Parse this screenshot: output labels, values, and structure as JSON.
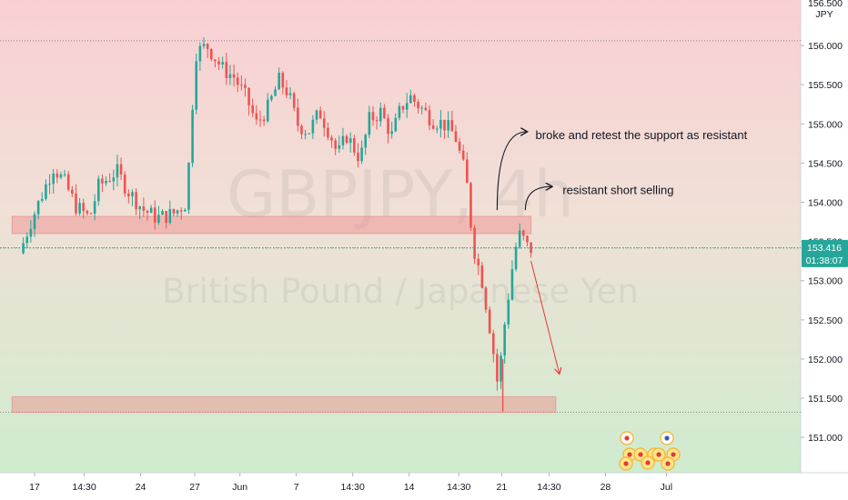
{
  "chart_data": {
    "type": "candlestick",
    "title": "GBPJPY, 4h",
    "subtitle": "British Pound / Japanese Yen",
    "currency": "JPY",
    "y_axis": {
      "ylim": [
        150.55,
        156.58
      ],
      "ticks": [
        "156.000",
        "155.500",
        "155.000",
        "154.500",
        "154.000",
        "153.500",
        "153.000",
        "152.500",
        "152.000",
        "151.500",
        "151.000"
      ],
      "top_partial": "156.500"
    },
    "x_axis": {
      "ticks": [
        {
          "label": "17",
          "day": 0
        },
        {
          "label": "14:30",
          "day": 2.2
        },
        {
          "label": "24",
          "day": 4.7
        },
        {
          "label": "27",
          "day": 7.1
        },
        {
          "label": "Jun",
          "day": 9.1
        },
        {
          "label": "7",
          "day": 11.6
        },
        {
          "label": "14:30",
          "day": 14.1
        },
        {
          "label": "14",
          "day": 16.6
        },
        {
          "label": "14:30",
          "day": 18.8
        },
        {
          "label": "21",
          "day": 20.7
        },
        {
          "label": "14:30",
          "day": 22.8
        },
        {
          "label": "28",
          "day": 25.3
        },
        {
          "label": "Jul",
          "day": 28.0
        }
      ]
    },
    "last_price": {
      "value": "153.416",
      "countdown": "01:38:07",
      "price": 153.416
    },
    "reference_lines": [
      156.06,
      153.42,
      151.32
    ],
    "zones": [
      {
        "name": "resistance-zone",
        "low": 153.6,
        "high": 153.82,
        "start_day": -1.0,
        "end_day": 22.0
      },
      {
        "name": "support-zone",
        "low": 151.32,
        "high": 151.52,
        "start_day": -1.0,
        "end_day": 23.1
      }
    ],
    "annotations": [
      {
        "text": "broke and retest the support as resistant",
        "arrow_from": [
          20.5,
          153.9
        ],
        "arrow_to": [
          21.8,
          154.9
        ],
        "text_pos": [
          22.2,
          154.85
        ]
      },
      {
        "text": "resistant short selling",
        "arrow_from": [
          21.75,
          153.9
        ],
        "arrow_to": [
          22.9,
          154.2
        ],
        "text_pos": [
          23.4,
          154.15
        ]
      }
    ],
    "projection": {
      "from": [
        22.0,
        153.25
      ],
      "to": [
        23.25,
        151.82
      ]
    },
    "anchors": [
      [
        -0.5,
        153.35
      ],
      [
        0,
        153.75
      ],
      [
        1.0,
        154.45
      ],
      [
        1.5,
        154.25
      ],
      [
        2.0,
        153.95
      ],
      [
        2.6,
        153.8
      ],
      [
        3.0,
        154.2
      ],
      [
        3.8,
        154.4
      ],
      [
        4.3,
        154.15
      ],
      [
        5.0,
        153.9
      ],
      [
        5.6,
        153.8
      ],
      [
        6.3,
        153.85
      ],
      [
        6.9,
        154.0
      ],
      [
        7.3,
        155.9
      ],
      [
        7.8,
        156.0
      ],
      [
        8.5,
        155.7
      ],
      [
        9.0,
        155.6
      ],
      [
        9.6,
        155.3
      ],
      [
        10.0,
        155.0
      ],
      [
        10.5,
        155.2
      ],
      [
        11.0,
        155.55
      ],
      [
        11.4,
        155.4
      ],
      [
        11.8,
        155.0
      ],
      [
        12.3,
        154.9
      ],
      [
        12.8,
        155.15
      ],
      [
        13.3,
        154.85
      ],
      [
        13.6,
        154.6
      ],
      [
        14.0,
        154.85
      ],
      [
        14.6,
        154.55
      ],
      [
        15.0,
        155.05
      ],
      [
        15.5,
        155.15
      ],
      [
        16.0,
        154.85
      ],
      [
        16.4,
        155.2
      ],
      [
        16.8,
        155.35
      ],
      [
        17.3,
        155.2
      ],
      [
        17.8,
        155.05
      ],
      [
        18.3,
        155.0
      ],
      [
        18.8,
        154.85
      ],
      [
        19.3,
        154.3
      ],
      [
        19.6,
        153.45
      ],
      [
        20.0,
        153.0
      ],
      [
        20.4,
        152.3
      ],
      [
        20.7,
        151.65
      ],
      [
        21.0,
        152.45
      ],
      [
        21.3,
        153.1
      ],
      [
        21.6,
        153.6
      ],
      [
        21.9,
        153.5
      ],
      [
        22.05,
        153.4
      ]
    ]
  }
}
